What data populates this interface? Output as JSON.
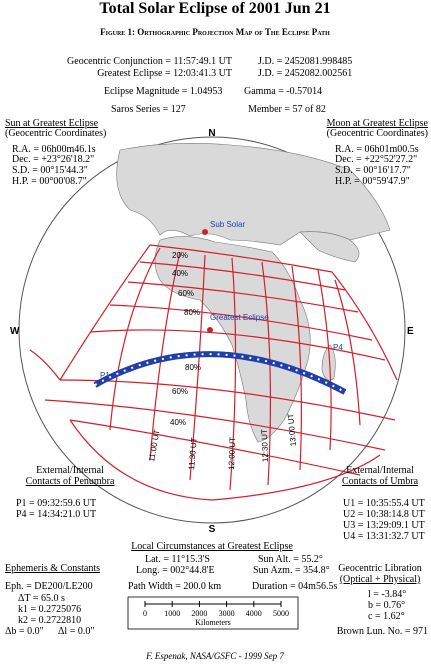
{
  "title": "Total Solar Eclipse of 2001 Jun 21",
  "figure": "Figure 1: Orthographic Projection Map of The Eclipse Path",
  "header": {
    "conjunction": "Geocentric Conjunction = 11:57:49.1 UT",
    "conjunction_jd": "J.D. = 2452081.998485",
    "greatest": "Greatest Eclipse = 12:03:41.3 UT",
    "greatest_jd": "J.D. = 2452082.002561",
    "magnitude": "Eclipse Magnitude = 1.04953",
    "gamma": "Gamma = -0.57014",
    "saros": "Saros Series = 127",
    "member": "Member = 57 of 82"
  },
  "sun": {
    "title": "Sun at Greatest Eclipse",
    "subtitle": "(Geocentric Coordinates)",
    "lines": [
      "R.A. = 06h00m46.1s",
      "Dec. = +23°26'18.2\"",
      "S.D. = 00°15'44.3\"",
      "H.P. = 00°00'08.7\""
    ]
  },
  "moon": {
    "title": "Moon at Greatest Eclipse",
    "subtitle": "(Geocentric Coordinates)",
    "lines": [
      "R.A. = 06h01m00.5s",
      "Dec. = +22°52'27.2\"",
      "S.D. = 00°16'17.7\"",
      "H.P. = 00°59'47.9\""
    ]
  },
  "map": {
    "north": "N",
    "south": "S",
    "west": "W",
    "east": "E",
    "sub_solar": "Sub Solar",
    "greatest_eclipse": "Greatest Eclipse",
    "p1": "P1",
    "p4": "P4",
    "upper_percent": [
      "20%",
      "40%",
      "60%",
      "80%"
    ],
    "lower_percent": [
      "80%",
      "60%",
      "40%"
    ],
    "times": [
      "11:00 UT",
      "11:30 UT",
      "12:00 UT",
      "12:30 UT",
      "13:00 UT"
    ]
  },
  "penumbra": {
    "title": "External/Internal",
    "subtitle": "Contacts of Penumbra",
    "lines": [
      "P1 = 09:32:59.6 UT",
      "P4 = 14:34:21.0 UT"
    ]
  },
  "umbra": {
    "title": "External/Internal",
    "subtitle": "Contacts of Umbra",
    "lines": [
      "U1 = 10:35:55.4 UT",
      "U2 = 10:38:14.8 UT",
      "U3 = 13:29:09.1 UT",
      "U4 = 13:31:32.7 UT"
    ]
  },
  "local": {
    "title": "Local Circumstances at Greatest Eclipse",
    "lat": "Lat. = 11°15.3'S",
    "long": "Long. = 002°44.8'E",
    "sun_alt": "Sun Alt. = 55.2°",
    "sun_azm": "Sun Azm. = 354.8°",
    "path_width": "Path Width = 200.0 km",
    "duration": "Duration = 04m56.5s"
  },
  "ephemeris": {
    "title": "Ephemeris & Constants",
    "lines": [
      "Eph. = DE200/LE200",
      "ΔT = 65.0 s",
      "k1 = 0.2725076",
      "k2 = 0.2722810"
    ],
    "db": "Δb = 0.0\"",
    "dl": "Δl = 0.0\""
  },
  "libration": {
    "title": "Geocentric Libration",
    "subtitle": "(Optical + Physical)",
    "lines": [
      "l = -3.84°",
      "b = 0.76°",
      "c = 1.62°"
    ],
    "brown": "Brown Lun. No. = 971"
  },
  "scale": {
    "ticks": [
      "0",
      "1000",
      "2000",
      "3000",
      "4000",
      "5000"
    ],
    "unit": "Kilometers"
  },
  "credit": "F. Espenak, NASA/GSFC - 1999 Sep 7"
}
